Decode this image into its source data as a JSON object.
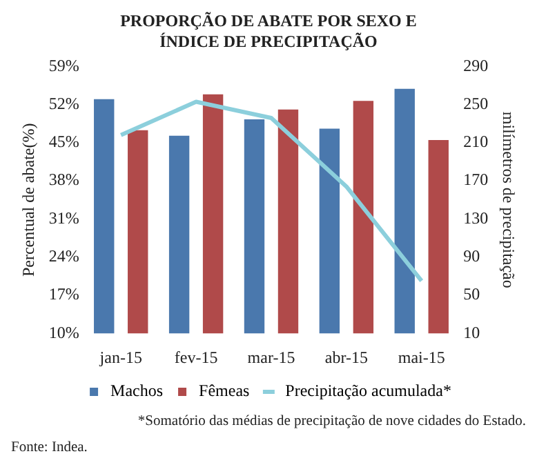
{
  "chart_data": {
    "type": "bar",
    "title": "PROPORÇÃO DE ABATE POR SEXO E ÍNDICE DE PRECIPITAÇÃO",
    "categories": [
      "jan-15",
      "fev-15",
      "mar-15",
      "abr-15",
      "mai-15"
    ],
    "series": [
      {
        "name": "Machos",
        "color": "#4a78ad",
        "values": [
          53.0,
          46.3,
          49.3,
          47.6,
          54.9
        ]
      },
      {
        "name": "Fêmeas",
        "color": "#b04a4a",
        "values": [
          47.3,
          53.9,
          51.1,
          52.7,
          45.5
        ]
      },
      {
        "name": "Precipitação acumulada*",
        "type": "line",
        "axis": "y2",
        "color": "#8ccfdc",
        "values": [
          218,
          253,
          236,
          164,
          65
        ]
      }
    ],
    "ylabel": "Percentual de abate(%)",
    "y2label": "milímetros de precipitação",
    "ylim": [
      10,
      59
    ],
    "yticks": [
      {
        "value": 10,
        "label": "10%"
      },
      {
        "value": 17,
        "label": "17%"
      },
      {
        "value": 24,
        "label": "24%"
      },
      {
        "value": 31,
        "label": "31%"
      },
      {
        "value": 38,
        "label": "38%"
      },
      {
        "value": 45,
        "label": "45%"
      },
      {
        "value": 52,
        "label": "52%"
      },
      {
        "value": 59,
        "label": "59%"
      }
    ],
    "y2lim": [
      10,
      290
    ],
    "y2ticks": [
      10,
      50,
      90,
      130,
      170,
      210,
      250,
      290
    ],
    "grid": false,
    "legend": "bottom",
    "marker": "none",
    "annotations": [
      "*Somatório das médias de precipitação de nove cidades do Estado.",
      "Fonte: Indea."
    ]
  }
}
